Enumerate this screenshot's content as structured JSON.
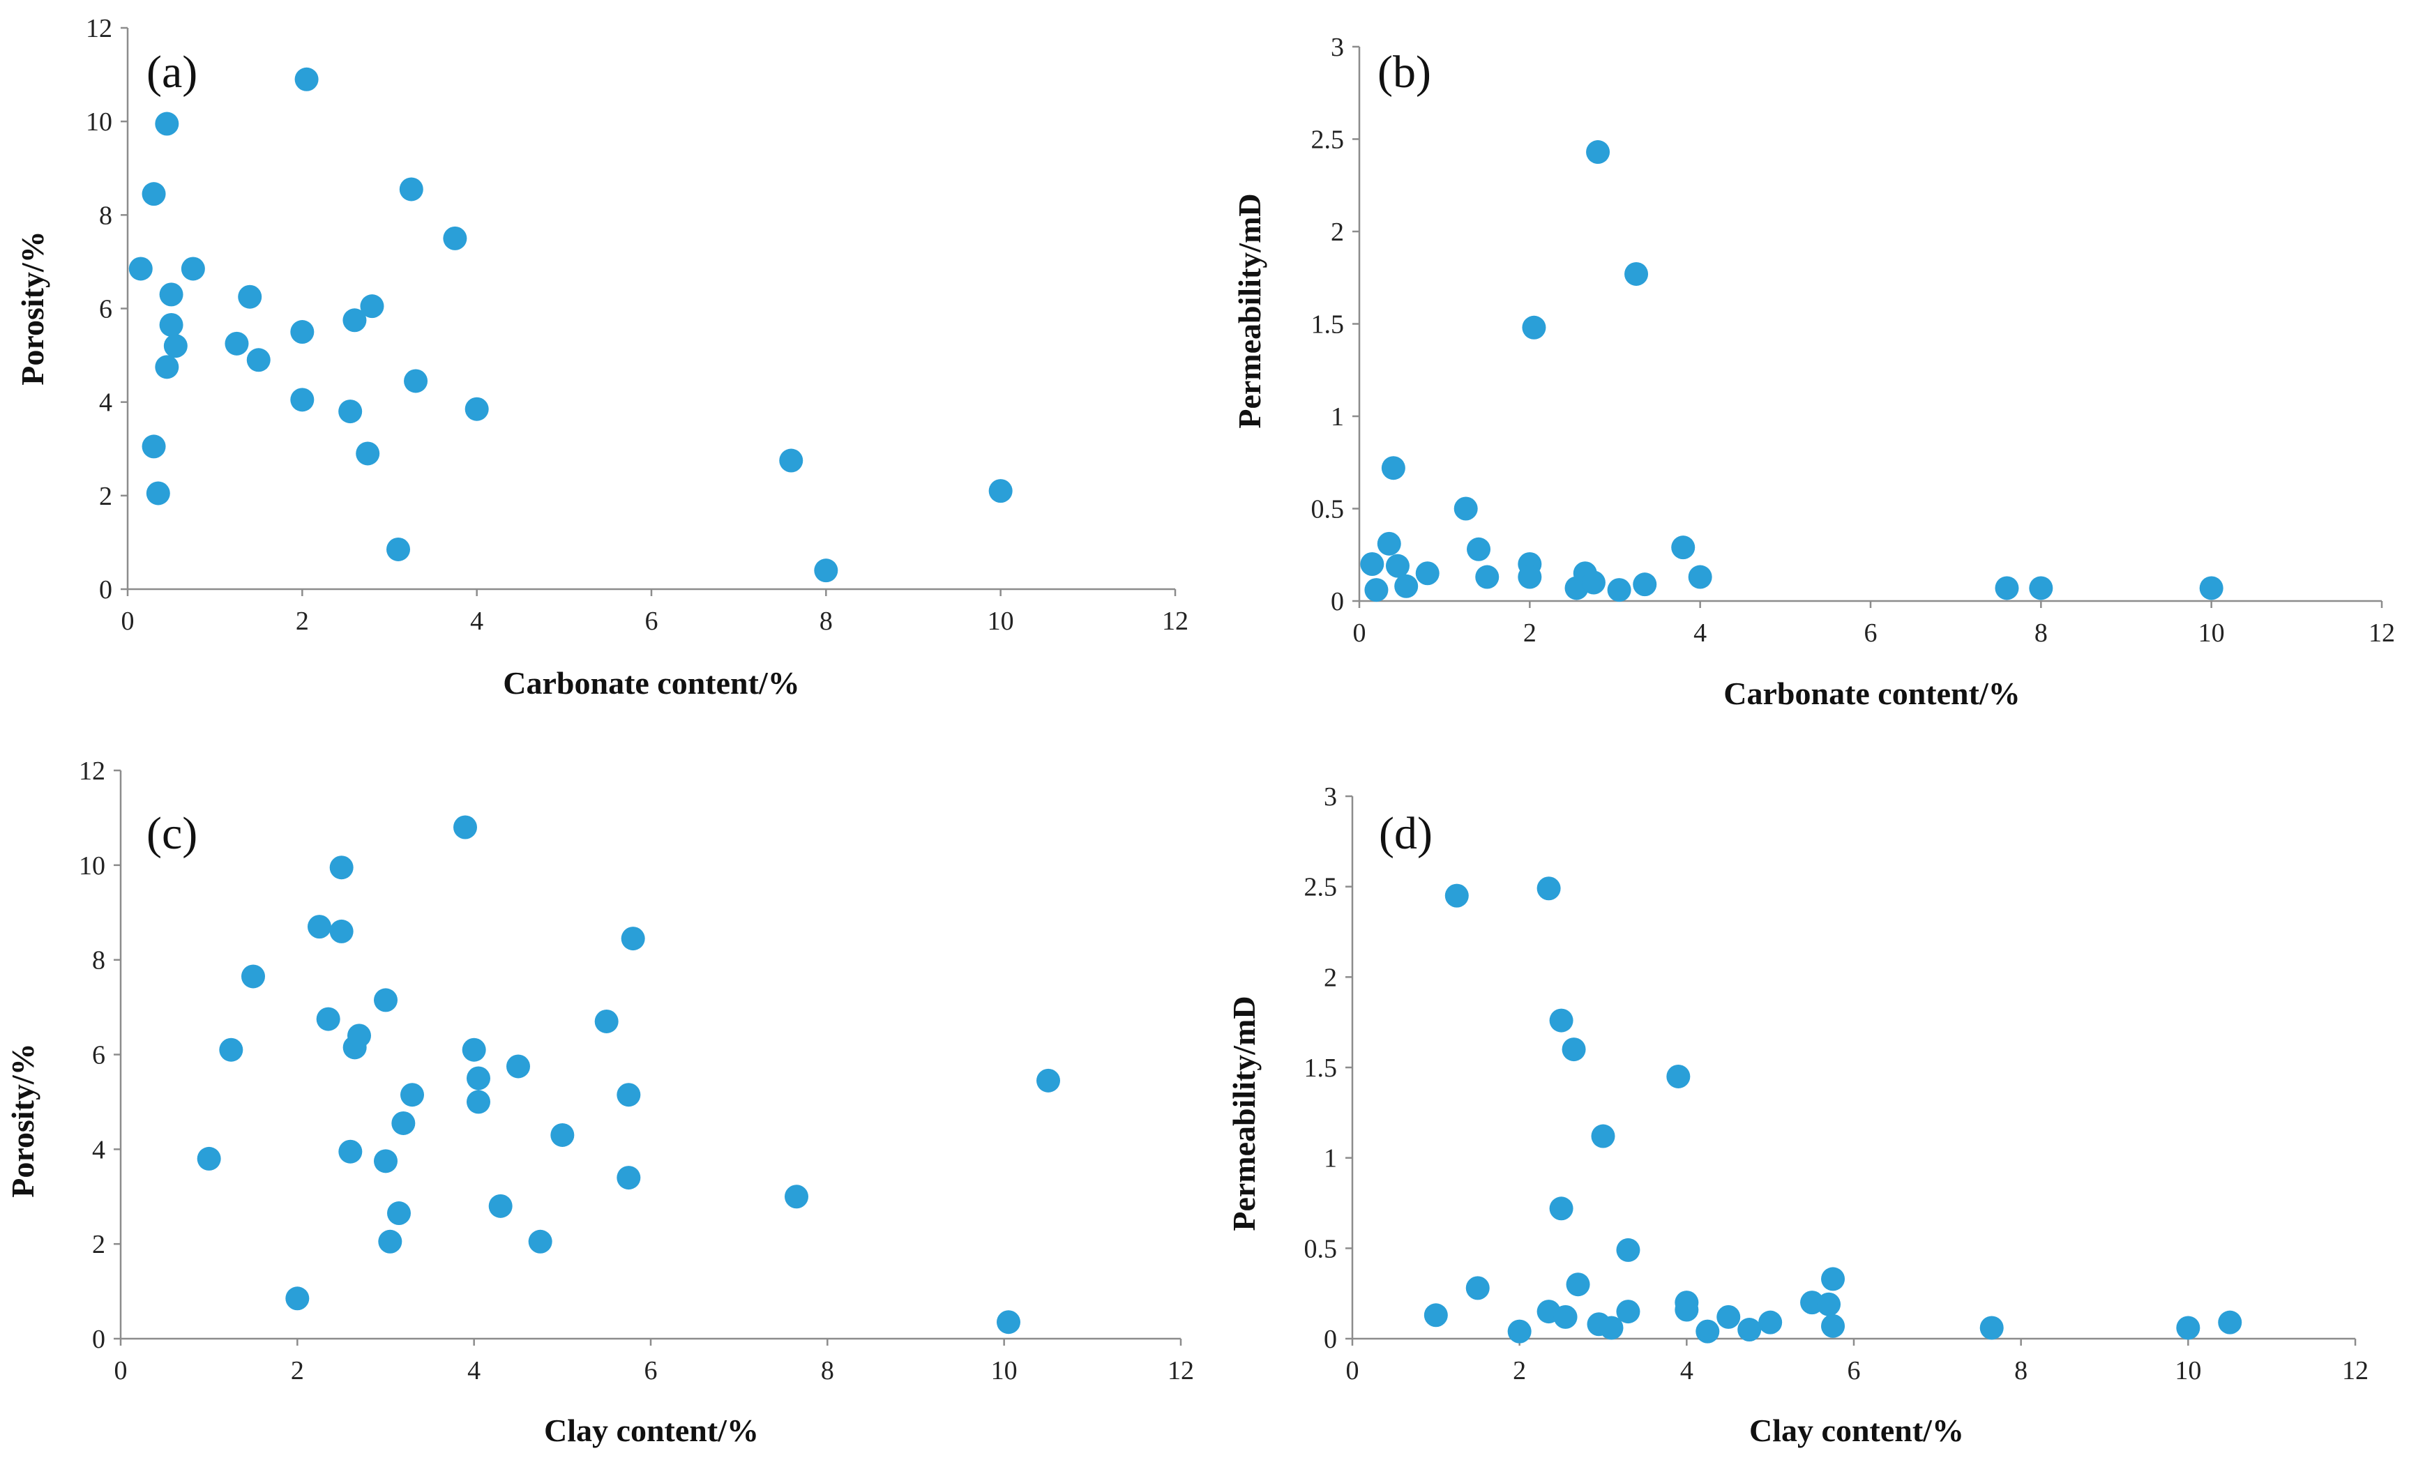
{
  "colors": {
    "marker": "#2a9fd8",
    "axis": "#8c8c8c",
    "text": "#111111"
  },
  "chart_data": [
    {
      "type": "scatter",
      "panel_label": "(a)",
      "xlabel": "Carbonate content/%",
      "ylabel": "Porosity/%",
      "xlim": [
        0,
        12
      ],
      "ylim": [
        0,
        12
      ],
      "xticks": [
        "0",
        "2",
        "4",
        "6",
        "8",
        "10",
        "12"
      ],
      "yticks": [
        "0",
        "2",
        "4",
        "6",
        "8",
        "10",
        "12"
      ],
      "grid": false,
      "points": [
        {
          "x": 0.15,
          "y": 6.85
        },
        {
          "x": 0.3,
          "y": 8.45
        },
        {
          "x": 0.45,
          "y": 9.95
        },
        {
          "x": 0.5,
          "y": 6.3
        },
        {
          "x": 0.5,
          "y": 5.65
        },
        {
          "x": 0.55,
          "y": 5.2
        },
        {
          "x": 0.45,
          "y": 4.75
        },
        {
          "x": 0.75,
          "y": 6.85
        },
        {
          "x": 0.3,
          "y": 3.05
        },
        {
          "x": 0.35,
          "y": 2.05
        },
        {
          "x": 1.25,
          "y": 5.25
        },
        {
          "x": 1.4,
          "y": 6.25
        },
        {
          "x": 1.5,
          "y": 4.9
        },
        {
          "x": 2.0,
          "y": 5.5
        },
        {
          "x": 2.0,
          "y": 4.05
        },
        {
          "x": 2.05,
          "y": 10.9
        },
        {
          "x": 2.55,
          "y": 3.8
        },
        {
          "x": 2.6,
          "y": 5.75
        },
        {
          "x": 2.75,
          "y": 2.9
        },
        {
          "x": 2.8,
          "y": 6.05
        },
        {
          "x": 3.1,
          "y": 0.85
        },
        {
          "x": 3.25,
          "y": 8.55
        },
        {
          "x": 3.3,
          "y": 4.45
        },
        {
          "x": 3.75,
          "y": 7.5
        },
        {
          "x": 4.0,
          "y": 3.85
        },
        {
          "x": 7.6,
          "y": 2.75
        },
        {
          "x": 8.0,
          "y": 0.4
        },
        {
          "x": 10.0,
          "y": 2.1
        }
      ]
    },
    {
      "type": "scatter",
      "panel_label": "(b)",
      "xlabel": "Carbonate content/%",
      "ylabel": "Permeability/mD",
      "xlim": [
        0,
        12
      ],
      "ylim": [
        0,
        3
      ],
      "xticks": [
        "0",
        "2",
        "4",
        "6",
        "8",
        "10",
        "12"
      ],
      "yticks": [
        "0",
        "0.5",
        "1",
        "1.5",
        "2",
        "2.5",
        "3"
      ],
      "grid": false,
      "points": [
        {
          "x": 0.15,
          "y": 0.2
        },
        {
          "x": 0.2,
          "y": 0.06
        },
        {
          "x": 0.35,
          "y": 0.31
        },
        {
          "x": 0.4,
          "y": 0.72
        },
        {
          "x": 0.45,
          "y": 0.19
        },
        {
          "x": 0.55,
          "y": 0.08
        },
        {
          "x": 0.8,
          "y": 0.15
        },
        {
          "x": 1.25,
          "y": 0.5
        },
        {
          "x": 1.4,
          "y": 0.28
        },
        {
          "x": 1.5,
          "y": 0.13
        },
        {
          "x": 2.0,
          "y": 0.2
        },
        {
          "x": 2.0,
          "y": 0.13
        },
        {
          "x": 2.05,
          "y": 1.48
        },
        {
          "x": 2.55,
          "y": 0.07
        },
        {
          "x": 2.65,
          "y": 0.15
        },
        {
          "x": 2.75,
          "y": 0.1
        },
        {
          "x": 2.8,
          "y": 2.43
        },
        {
          "x": 3.05,
          "y": 0.06
        },
        {
          "x": 3.25,
          "y": 1.77
        },
        {
          "x": 3.35,
          "y": 0.09
        },
        {
          "x": 3.8,
          "y": 0.29
        },
        {
          "x": 4.0,
          "y": 0.13
        },
        {
          "x": 7.6,
          "y": 0.07
        },
        {
          "x": 8.0,
          "y": 0.07
        },
        {
          "x": 10.0,
          "y": 0.07
        }
      ]
    },
    {
      "type": "scatter",
      "panel_label": "(c)",
      "xlabel": "Clay content/%",
      "ylabel": "Porosity/%",
      "xlim": [
        0,
        12
      ],
      "ylim": [
        0,
        12
      ],
      "xticks": [
        "0",
        "2",
        "4",
        "6",
        "8",
        "10",
        "12"
      ],
      "yticks": [
        "0",
        "2",
        "4",
        "6",
        "8",
        "10",
        "12"
      ],
      "grid": false,
      "points": [
        {
          "x": 1.0,
          "y": 3.8
        },
        {
          "x": 1.25,
          "y": 6.1
        },
        {
          "x": 1.5,
          "y": 7.65
        },
        {
          "x": 2.0,
          "y": 0.85
        },
        {
          "x": 2.25,
          "y": 8.7
        },
        {
          "x": 2.35,
          "y": 6.75
        },
        {
          "x": 2.5,
          "y": 9.95
        },
        {
          "x": 2.5,
          "y": 8.6
        },
        {
          "x": 2.6,
          "y": 3.95
        },
        {
          "x": 2.65,
          "y": 6.15
        },
        {
          "x": 2.7,
          "y": 6.4
        },
        {
          "x": 3.0,
          "y": 7.15
        },
        {
          "x": 3.0,
          "y": 3.75
        },
        {
          "x": 3.05,
          "y": 2.05
        },
        {
          "x": 3.15,
          "y": 2.65
        },
        {
          "x": 3.2,
          "y": 4.55
        },
        {
          "x": 3.3,
          "y": 5.15
        },
        {
          "x": 3.9,
          "y": 10.8
        },
        {
          "x": 4.0,
          "y": 6.1
        },
        {
          "x": 4.05,
          "y": 5.5
        },
        {
          "x": 4.05,
          "y": 5.0
        },
        {
          "x": 4.3,
          "y": 2.8
        },
        {
          "x": 4.5,
          "y": 5.75
        },
        {
          "x": 4.75,
          "y": 2.05
        },
        {
          "x": 5.0,
          "y": 4.3
        },
        {
          "x": 5.5,
          "y": 6.7
        },
        {
          "x": 5.75,
          "y": 5.15
        },
        {
          "x": 5.75,
          "y": 3.4
        },
        {
          "x": 5.8,
          "y": 8.45
        },
        {
          "x": 7.65,
          "y": 3.0
        },
        {
          "x": 10.05,
          "y": 0.35
        },
        {
          "x": 10.5,
          "y": 5.45
        }
      ]
    },
    {
      "type": "scatter",
      "panel_label": "(d)",
      "xlabel": "Clay content/%",
      "ylabel": "Permeability/mD",
      "xlim": [
        0,
        12
      ],
      "ylim": [
        0,
        3
      ],
      "xticks": [
        "0",
        "2",
        "4",
        "6",
        "8",
        "10",
        "12"
      ],
      "yticks": [
        "0",
        "0.5",
        "1",
        "1.5",
        "2",
        "2.5",
        "3"
      ],
      "grid": false,
      "points": [
        {
          "x": 1.0,
          "y": 0.13
        },
        {
          "x": 1.25,
          "y": 2.45
        },
        {
          "x": 1.5,
          "y": 0.28
        },
        {
          "x": 2.0,
          "y": 0.04
        },
        {
          "x": 2.35,
          "y": 2.49
        },
        {
          "x": 2.35,
          "y": 0.15
        },
        {
          "x": 2.5,
          "y": 1.76
        },
        {
          "x": 2.5,
          "y": 0.72
        },
        {
          "x": 2.55,
          "y": 0.12
        },
        {
          "x": 2.65,
          "y": 1.6
        },
        {
          "x": 2.7,
          "y": 0.3
        },
        {
          "x": 2.95,
          "y": 0.08
        },
        {
          "x": 3.0,
          "y": 1.12
        },
        {
          "x": 3.1,
          "y": 0.06
        },
        {
          "x": 3.3,
          "y": 0.49
        },
        {
          "x": 3.3,
          "y": 0.15
        },
        {
          "x": 3.9,
          "y": 1.45
        },
        {
          "x": 4.0,
          "y": 0.2
        },
        {
          "x": 4.0,
          "y": 0.16
        },
        {
          "x": 4.25,
          "y": 0.04
        },
        {
          "x": 4.5,
          "y": 0.12
        },
        {
          "x": 4.75,
          "y": 0.05
        },
        {
          "x": 5.0,
          "y": 0.09
        },
        {
          "x": 5.5,
          "y": 0.2
        },
        {
          "x": 5.7,
          "y": 0.19
        },
        {
          "x": 5.75,
          "y": 0.33
        },
        {
          "x": 5.75,
          "y": 0.07
        },
        {
          "x": 7.65,
          "y": 0.06
        },
        {
          "x": 10.0,
          "y": 0.06
        },
        {
          "x": 10.5,
          "y": 0.09
        }
      ]
    }
  ]
}
